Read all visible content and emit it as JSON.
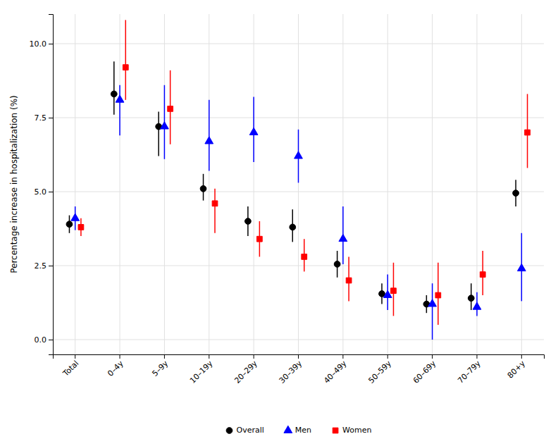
{
  "chart_data": {
    "type": "errorbar",
    "categories": [
      "Total",
      "0–4y",
      "5–9y",
      "10–19y",
      "20–29y",
      "30–39y",
      "40–49y",
      "50–59y",
      "60–69y",
      "70–79y",
      "80+y"
    ],
    "series": [
      {
        "name": "Overall",
        "color": "#000000",
        "marker": "circle",
        "values": [
          3.9,
          8.3,
          7.2,
          5.1,
          4.0,
          3.8,
          2.55,
          1.55,
          1.2,
          1.4,
          4.95
        ],
        "lower": [
          3.6,
          7.6,
          6.2,
          4.7,
          3.5,
          3.3,
          2.1,
          1.2,
          0.9,
          1.0,
          4.5
        ],
        "upper": [
          4.2,
          9.4,
          7.7,
          5.6,
          4.5,
          4.4,
          3.0,
          1.9,
          1.5,
          1.9,
          5.4
        ]
      },
      {
        "name": "Men",
        "color": "#0000FF",
        "marker": "triangle",
        "values": [
          4.1,
          8.1,
          7.2,
          6.7,
          7.0,
          6.2,
          3.4,
          1.5,
          1.2,
          1.1,
          2.4
        ],
        "lower": [
          3.7,
          6.9,
          6.1,
          5.7,
          6.0,
          5.3,
          2.55,
          1.0,
          0.0,
          0.8,
          1.3
        ],
        "upper": [
          4.5,
          8.6,
          8.6,
          8.1,
          8.2,
          7.1,
          4.5,
          2.2,
          1.9,
          1.6,
          3.6
        ]
      },
      {
        "name": "Women",
        "color": "#FF0000",
        "marker": "square",
        "values": [
          3.8,
          9.2,
          7.8,
          4.6,
          3.4,
          2.8,
          2.0,
          1.65,
          1.5,
          2.2,
          7.0
        ],
        "lower": [
          3.5,
          8.1,
          6.6,
          3.6,
          2.8,
          2.3,
          1.3,
          0.8,
          0.5,
          1.5,
          5.8
        ],
        "upper": [
          4.1,
          10.8,
          9.1,
          5.1,
          4.0,
          3.4,
          2.8,
          2.6,
          2.6,
          3.0,
          8.3
        ]
      }
    ],
    "ylabel": "Percentage increase in hospitalization (%)",
    "ylim": [
      -0.5,
      11.0
    ],
    "yticks": [
      {
        "value": 0,
        "label": "0.0"
      },
      2.5,
      {
        "value": 5,
        "label": "5.0"
      },
      7.5,
      {
        "value": 10,
        "label": "10.0"
      }
    ],
    "grid": true,
    "legend": "bottom"
  }
}
